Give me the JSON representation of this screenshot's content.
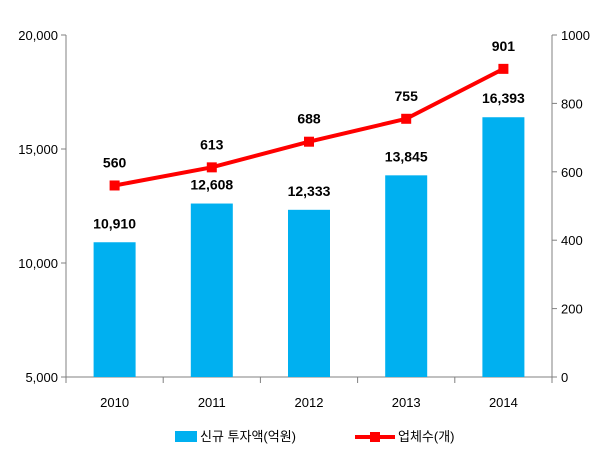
{
  "chart_data": {
    "type": "bar+line",
    "categories": [
      "2010",
      "2011",
      "2012",
      "2013",
      "2014"
    ],
    "series": [
      {
        "name": "신규 투자액(억원)",
        "type": "bar",
        "axis": "left",
        "values": [
          10910,
          12608,
          12333,
          13845,
          16393
        ],
        "labels": [
          "10,910",
          "12,608",
          "12,333",
          "13,845",
          "16,393"
        ],
        "color": "#00B0F0"
      },
      {
        "name": "업체수(개)",
        "type": "line",
        "axis": "right",
        "values": [
          560,
          613,
          688,
          755,
          901
        ],
        "labels": [
          "560",
          "613",
          "688",
          "755",
          "901"
        ],
        "color": "#FF0000"
      }
    ],
    "y_left": {
      "min": 5000,
      "max": 20000,
      "ticks": [
        "5,000",
        "10,000",
        "15,000",
        "20,000"
      ],
      "tick_values": [
        5000,
        10000,
        15000,
        20000
      ]
    },
    "y_right": {
      "min": 0,
      "max": 1000,
      "ticks": [
        "0",
        "200",
        "400",
        "600",
        "800",
        "1000"
      ],
      "tick_values": [
        0,
        200,
        400,
        600,
        800,
        1000
      ]
    },
    "grid": false,
    "legend_position": "bottom"
  }
}
